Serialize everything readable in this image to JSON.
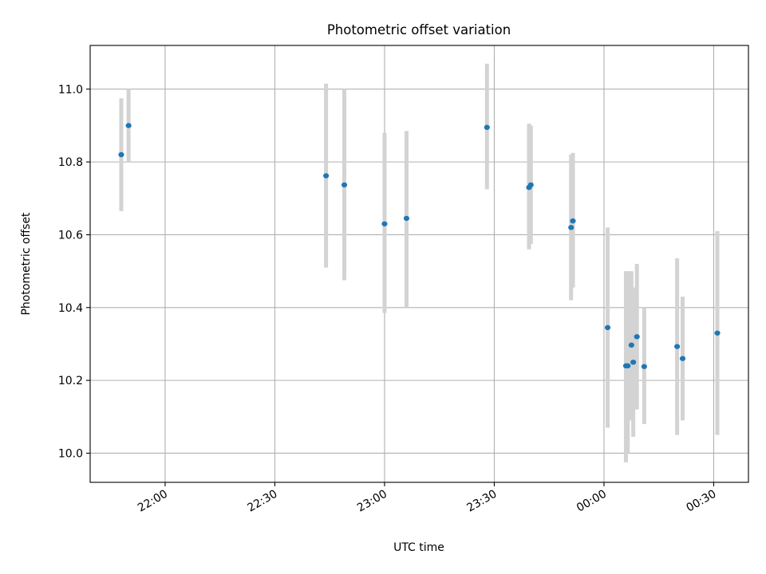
{
  "chart_data": {
    "type": "scatter",
    "title": "Photometric offset variation",
    "xlabel": "UTC time",
    "ylabel": "Photometric offset",
    "x_unit": "UTC time (hh:mm)",
    "xlim": [
      "21:39:30",
      "00:39:30"
    ],
    "ylim": [
      9.92,
      11.12
    ],
    "x_ticks": [
      "22:00",
      "22:30",
      "23:00",
      "23:30",
      "00:00",
      "00:30"
    ],
    "y_ticks": [
      "10.0",
      "10.2",
      "10.4",
      "10.6",
      "10.8",
      "11.0"
    ],
    "grid": true,
    "colors": {
      "marker": "#1f77b4",
      "errorbar": "#d3d3d3",
      "grid": "#b0b0b0"
    },
    "series": [
      {
        "points": [
          {
            "x": "21:48",
            "y": 10.82,
            "yerr_low": 10.665,
            "yerr_high": 10.975
          },
          {
            "x": "21:50",
            "y": 10.9,
            "yerr_low": 10.8,
            "yerr_high": 11.0
          },
          {
            "x": "22:44",
            "y": 10.762,
            "yerr_low": 10.51,
            "yerr_high": 11.015
          },
          {
            "x": "22:49",
            "y": 10.737,
            "yerr_low": 10.475,
            "yerr_high": 11.0
          },
          {
            "x": "23:00",
            "y": 10.63,
            "yerr_low": 10.385,
            "yerr_high": 10.88
          },
          {
            "x": "23:06",
            "y": 10.645,
            "yerr_low": 10.4,
            "yerr_high": 10.885
          },
          {
            "x": "23:28",
            "y": 10.895,
            "yerr_low": 10.725,
            "yerr_high": 11.07
          },
          {
            "x": "23:39:30",
            "y": 10.73,
            "yerr_low": 10.56,
            "yerr_high": 10.905
          },
          {
            "x": "23:40",
            "y": 10.737,
            "yerr_low": 10.575,
            "yerr_high": 10.9
          },
          {
            "x": "23:51",
            "y": 10.62,
            "yerr_low": 10.42,
            "yerr_high": 10.82
          },
          {
            "x": "23:51:30",
            "y": 10.638,
            "yerr_low": 10.455,
            "yerr_high": 10.825
          },
          {
            "x": "00:01",
            "y": 10.345,
            "yerr_low": 10.07,
            "yerr_high": 10.62
          },
          {
            "x": "00:06",
            "y": 10.24,
            "yerr_low": 9.975,
            "yerr_high": 10.5
          },
          {
            "x": "00:06:30",
            "y": 10.24,
            "yerr_low": 10.0,
            "yerr_high": 10.5
          },
          {
            "x": "00:07:30",
            "y": 10.297,
            "yerr_low": 10.09,
            "yerr_high": 10.5
          },
          {
            "x": "00:08",
            "y": 10.25,
            "yerr_low": 10.045,
            "yerr_high": 10.455
          },
          {
            "x": "00:09",
            "y": 10.32,
            "yerr_low": 10.12,
            "yerr_high": 10.52
          },
          {
            "x": "00:11",
            "y": 10.238,
            "yerr_low": 10.08,
            "yerr_high": 10.4
          },
          {
            "x": "00:20",
            "y": 10.293,
            "yerr_low": 10.05,
            "yerr_high": 10.535
          },
          {
            "x": "00:21:30",
            "y": 10.26,
            "yerr_low": 10.09,
            "yerr_high": 10.43
          },
          {
            "x": "00:31",
            "y": 10.33,
            "yerr_low": 10.05,
            "yerr_high": 10.61
          }
        ]
      }
    ]
  }
}
